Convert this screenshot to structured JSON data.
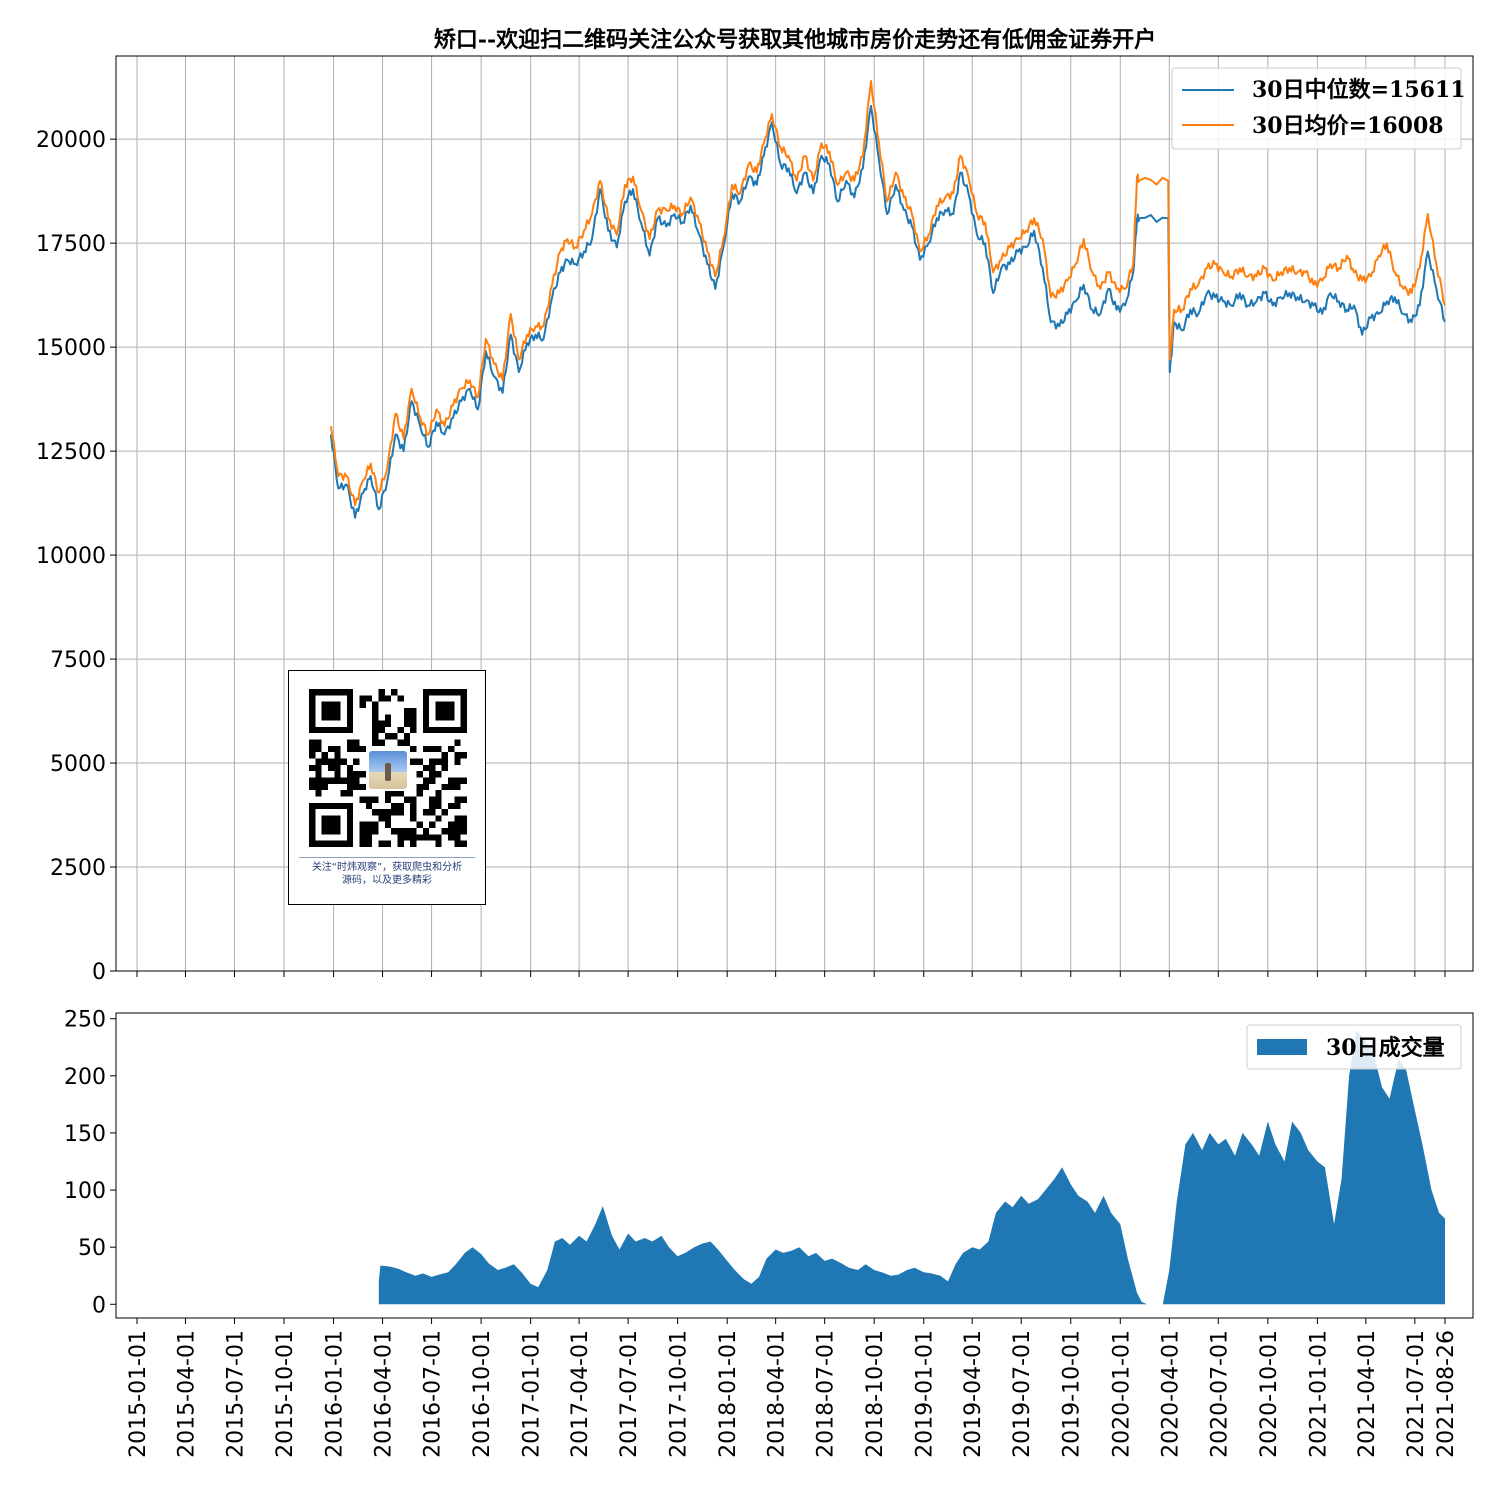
{
  "chart_data": [
    {
      "type": "line",
      "title": "矫口--欢迎扫二维码关注公众号获取其他城市房价走势还有低佣金证券开户",
      "xlabel": "",
      "ylabel": "",
      "xlim": [
        "2014-11-23",
        "2021-10-17"
      ],
      "ylim": [
        0,
        22000
      ],
      "yticks": [
        0,
        2500,
        5000,
        7500,
        10000,
        12500,
        15000,
        17500,
        20000
      ],
      "grid": true,
      "legend_position": "top-right",
      "series": [
        {
          "name": "30日中位数=15611",
          "color": "#1f77b4",
          "x": [
            "2015-12-27",
            "2016-01-10",
            "2016-01-25",
            "2016-02-10",
            "2016-02-25",
            "2016-03-10",
            "2016-03-25",
            "2016-04-10",
            "2016-04-25",
            "2016-05-10",
            "2016-05-25",
            "2016-06-10",
            "2016-06-25",
            "2016-07-10",
            "2016-07-25",
            "2016-08-10",
            "2016-08-25",
            "2016-09-10",
            "2016-09-25",
            "2016-10-10",
            "2016-10-25",
            "2016-11-10",
            "2016-11-25",
            "2016-12-10",
            "2016-12-25",
            "2017-01-10",
            "2017-01-25",
            "2017-02-10",
            "2017-02-25",
            "2017-03-10",
            "2017-03-25",
            "2017-04-10",
            "2017-04-25",
            "2017-05-10",
            "2017-05-25",
            "2017-06-10",
            "2017-06-25",
            "2017-07-10",
            "2017-07-25",
            "2017-08-10",
            "2017-08-25",
            "2017-09-10",
            "2017-09-25",
            "2017-10-10",
            "2017-10-25",
            "2017-11-10",
            "2017-11-25",
            "2017-12-10",
            "2017-12-25",
            "2018-01-10",
            "2018-01-25",
            "2018-02-10",
            "2018-02-25",
            "2018-03-10",
            "2018-03-25",
            "2018-04-10",
            "2018-04-25",
            "2018-05-10",
            "2018-05-25",
            "2018-06-10",
            "2018-06-25",
            "2018-07-10",
            "2018-07-25",
            "2018-08-10",
            "2018-08-25",
            "2018-09-10",
            "2018-09-25",
            "2018-10-10",
            "2018-10-25",
            "2018-11-10",
            "2018-11-25",
            "2018-12-10",
            "2018-12-25",
            "2019-01-10",
            "2019-01-25",
            "2019-02-10",
            "2019-02-25",
            "2019-03-10",
            "2019-03-25",
            "2019-04-10",
            "2019-04-25",
            "2019-05-10",
            "2019-05-25",
            "2019-06-10",
            "2019-06-25",
            "2019-07-10",
            "2019-07-25",
            "2019-08-10",
            "2019-08-25",
            "2019-09-10",
            "2019-09-25",
            "2019-10-10",
            "2019-10-25",
            "2019-11-10",
            "2019-11-25",
            "2019-12-10",
            "2019-12-25",
            "2020-01-10",
            "2020-01-25",
            "2020-02-01",
            "2020-02-05",
            "2020-03-30",
            "2020-04-02",
            "2020-04-10",
            "2020-04-25",
            "2020-05-10",
            "2020-05-25",
            "2020-06-10",
            "2020-06-25",
            "2020-07-10",
            "2020-07-25",
            "2020-08-10",
            "2020-08-25",
            "2020-09-10",
            "2020-09-25",
            "2020-10-10",
            "2020-10-25",
            "2020-11-10",
            "2020-11-25",
            "2020-12-10",
            "2020-12-25",
            "2021-01-10",
            "2021-01-25",
            "2021-02-10",
            "2021-02-25",
            "2021-03-10",
            "2021-03-25",
            "2021-04-10",
            "2021-04-25",
            "2021-05-10",
            "2021-05-25",
            "2021-06-10",
            "2021-06-25",
            "2021-07-10",
            "2021-07-25",
            "2021-08-10",
            "2021-08-26"
          ],
          "y": [
            12900,
            11600,
            11700,
            10900,
            11500,
            11900,
            11100,
            11800,
            12900,
            12500,
            13700,
            13100,
            12600,
            13200,
            12900,
            13300,
            13700,
            14000,
            13500,
            14900,
            14300,
            13900,
            15300,
            14400,
            15100,
            15300,
            15200,
            16200,
            16800,
            17100,
            17000,
            17300,
            17600,
            18800,
            17800,
            17400,
            18500,
            18800,
            18000,
            17200,
            18100,
            17900,
            18200,
            18000,
            18400,
            17700,
            17000,
            16400,
            17400,
            18700,
            18500,
            19100,
            18900,
            19600,
            20400,
            19400,
            19300,
            18700,
            19200,
            18700,
            19600,
            19400,
            18500,
            19000,
            18600,
            19300,
            20800,
            19500,
            18200,
            18900,
            18300,
            17900,
            17100,
            17500,
            18100,
            18300,
            18200,
            19200,
            18700,
            17700,
            17500,
            16300,
            16900,
            17000,
            17300,
            17400,
            17800,
            16900,
            15600,
            15500,
            15800,
            16100,
            16500,
            15900,
            15800,
            16400,
            15900,
            16000,
            16800,
            18100,
            18100,
            18100,
            14400,
            15600,
            15400,
            15900,
            15800,
            16300,
            16200,
            16100,
            16000,
            16300,
            16000,
            16100,
            16300,
            16000,
            16200,
            16300,
            16200,
            16100,
            16000,
            15800,
            16300,
            16100,
            15900,
            16000,
            15300,
            15700,
            15800,
            16100,
            16200,
            15800,
            15600,
            16000,
            17300,
            16400,
            15611
          ]
        },
        {
          "name": "30日均价=16008",
          "color": "#ff7f0e",
          "x": [
            "2015-12-27",
            "2016-01-10",
            "2016-01-25",
            "2016-02-10",
            "2016-02-25",
            "2016-03-10",
            "2016-03-25",
            "2016-04-10",
            "2016-04-25",
            "2016-05-10",
            "2016-05-25",
            "2016-06-10",
            "2016-06-25",
            "2016-07-10",
            "2016-07-25",
            "2016-08-10",
            "2016-08-25",
            "2016-09-10",
            "2016-09-25",
            "2016-10-10",
            "2016-10-25",
            "2016-11-10",
            "2016-11-25",
            "2016-12-10",
            "2016-12-25",
            "2017-01-10",
            "2017-01-25",
            "2017-02-10",
            "2017-02-25",
            "2017-03-10",
            "2017-03-25",
            "2017-04-10",
            "2017-04-25",
            "2017-05-10",
            "2017-05-25",
            "2017-06-10",
            "2017-06-25",
            "2017-07-10",
            "2017-07-25",
            "2017-08-10",
            "2017-08-25",
            "2017-09-10",
            "2017-09-25",
            "2017-10-10",
            "2017-10-25",
            "2017-11-10",
            "2017-11-25",
            "2017-12-10",
            "2017-12-25",
            "2018-01-10",
            "2018-01-25",
            "2018-02-10",
            "2018-02-25",
            "2018-03-10",
            "2018-03-25",
            "2018-04-10",
            "2018-04-25",
            "2018-05-10",
            "2018-05-25",
            "2018-06-10",
            "2018-06-25",
            "2018-07-10",
            "2018-07-25",
            "2018-08-10",
            "2018-08-25",
            "2018-09-10",
            "2018-09-25",
            "2018-10-10",
            "2018-10-25",
            "2018-11-10",
            "2018-11-25",
            "2018-12-10",
            "2018-12-25",
            "2019-01-10",
            "2019-01-25",
            "2019-02-10",
            "2019-02-25",
            "2019-03-10",
            "2019-03-25",
            "2019-04-10",
            "2019-04-25",
            "2019-05-10",
            "2019-05-25",
            "2019-06-10",
            "2019-06-25",
            "2019-07-10",
            "2019-07-25",
            "2019-08-10",
            "2019-08-25",
            "2019-09-10",
            "2019-09-25",
            "2019-10-10",
            "2019-10-25",
            "2019-11-10",
            "2019-11-25",
            "2019-12-10",
            "2019-12-25",
            "2020-01-10",
            "2020-01-25",
            "2020-02-01",
            "2020-02-05",
            "2020-03-30",
            "2020-04-02",
            "2020-04-10",
            "2020-04-25",
            "2020-05-10",
            "2020-05-25",
            "2020-06-10",
            "2020-06-25",
            "2020-07-10",
            "2020-07-25",
            "2020-08-10",
            "2020-08-25",
            "2020-09-10",
            "2020-09-25",
            "2020-10-10",
            "2020-10-25",
            "2020-11-10",
            "2020-11-25",
            "2020-12-10",
            "2020-12-25",
            "2021-01-10",
            "2021-01-25",
            "2021-02-10",
            "2021-02-25",
            "2021-03-10",
            "2021-03-25",
            "2021-04-10",
            "2021-04-25",
            "2021-05-10",
            "2021-05-25",
            "2021-06-10",
            "2021-06-25",
            "2021-07-10",
            "2021-07-25",
            "2021-08-10",
            "2021-08-26"
          ],
          "y": [
            13100,
            11900,
            11900,
            11200,
            11800,
            12200,
            11500,
            12100,
            13400,
            12800,
            14000,
            13300,
            12900,
            13500,
            13100,
            13600,
            14000,
            14200,
            13800,
            15200,
            14600,
            14200,
            15800,
            14700,
            15300,
            15500,
            15500,
            16500,
            17300,
            17600,
            17400,
            17800,
            18200,
            19000,
            18100,
            17700,
            18900,
            19100,
            18300,
            17600,
            18300,
            18300,
            18400,
            18200,
            18600,
            18000,
            17300,
            16700,
            17600,
            18900,
            18700,
            19400,
            19200,
            19900,
            20600,
            19800,
            19600,
            19000,
            19600,
            19000,
            19900,
            19700,
            18900,
            19200,
            19000,
            19600,
            21400,
            19900,
            18500,
            19200,
            18600,
            18200,
            17300,
            17700,
            18400,
            18600,
            18700,
            19600,
            19100,
            18200,
            18000,
            16800,
            17100,
            17400,
            17600,
            17800,
            18100,
            17600,
            16200,
            16300,
            16600,
            17000,
            17600,
            16800,
            16400,
            16800,
            16400,
            16400,
            17000,
            19100,
            19000,
            19000,
            14700,
            15900,
            15900,
            16400,
            16500,
            16900,
            17000,
            16800,
            16700,
            16900,
            16700,
            16700,
            16900,
            16600,
            16800,
            16900,
            16800,
            16800,
            16500,
            16600,
            17000,
            16900,
            17200,
            16800,
            16600,
            16700,
            17200,
            17500,
            16800,
            16400,
            16300,
            16900,
            18200,
            17000,
            16008
          ]
        }
      ]
    },
    {
      "type": "area",
      "xlabel": "",
      "ylabel": "",
      "ylim": [
        -12,
        255
      ],
      "yticks": [
        0,
        50,
        100,
        150,
        200,
        250
      ],
      "grid": false,
      "legend_position": "top-right",
      "x_tick_labels": [
        "2015-01-01",
        "2015-04-01",
        "2015-07-01",
        "2015-10-01",
        "2016-01-01",
        "2016-04-01",
        "2016-07-01",
        "2016-10-01",
        "2017-01-01",
        "2017-04-01",
        "2017-07-01",
        "2017-10-01",
        "2018-01-01",
        "2018-04-01",
        "2018-07-01",
        "2018-10-01",
        "2019-01-01",
        "2019-04-01",
        "2019-07-01",
        "2019-10-01",
        "2020-01-01",
        "2020-04-01",
        "2020-07-01",
        "2020-10-01",
        "2021-01-01",
        "2021-04-01",
        "2021-07-01",
        "2021-08-26"
      ],
      "series": [
        {
          "name": "30日成交量",
          "color": "#1f77b4",
          "x": [
            "2016-03-25",
            "2016-03-28",
            "2016-04-15",
            "2016-05-01",
            "2016-05-15",
            "2016-06-01",
            "2016-06-15",
            "2016-07-01",
            "2016-07-15",
            "2016-08-01",
            "2016-08-15",
            "2016-09-01",
            "2016-09-15",
            "2016-10-01",
            "2016-10-15",
            "2016-11-01",
            "2016-11-15",
            "2016-12-01",
            "2016-12-15",
            "2017-01-01",
            "2017-01-15",
            "2017-02-01",
            "2017-02-15",
            "2017-03-01",
            "2017-03-15",
            "2017-04-01",
            "2017-04-15",
            "2017-05-01",
            "2017-05-15",
            "2017-06-01",
            "2017-06-15",
            "2017-07-01",
            "2017-07-15",
            "2017-08-01",
            "2017-08-15",
            "2017-09-01",
            "2017-09-15",
            "2017-10-01",
            "2017-10-15",
            "2017-11-01",
            "2017-11-15",
            "2017-12-01",
            "2017-12-15",
            "2018-01-01",
            "2018-01-15",
            "2018-02-01",
            "2018-02-15",
            "2018-03-01",
            "2018-03-15",
            "2018-04-01",
            "2018-04-15",
            "2018-05-01",
            "2018-05-15",
            "2018-06-01",
            "2018-06-15",
            "2018-07-01",
            "2018-07-15",
            "2018-08-01",
            "2018-08-15",
            "2018-09-01",
            "2018-09-15",
            "2018-10-01",
            "2018-10-15",
            "2018-11-01",
            "2018-11-15",
            "2018-12-01",
            "2018-12-15",
            "2019-01-01",
            "2019-01-15",
            "2019-02-01",
            "2019-02-15",
            "2019-03-01",
            "2019-03-15",
            "2019-04-01",
            "2019-04-15",
            "2019-05-01",
            "2019-05-15",
            "2019-06-01",
            "2019-06-15",
            "2019-07-01",
            "2019-07-15",
            "2019-08-01",
            "2019-08-15",
            "2019-09-01",
            "2019-09-15",
            "2019-10-01",
            "2019-10-15",
            "2019-11-01",
            "2019-11-15",
            "2019-12-01",
            "2019-12-15",
            "2020-01-01",
            "2020-01-15",
            "2020-02-01",
            "2020-02-10",
            "2020-02-20",
            "2020-03-10",
            "2020-03-20",
            "2020-04-01",
            "2020-04-15",
            "2020-05-01",
            "2020-05-15",
            "2020-06-01",
            "2020-06-15",
            "2020-07-01",
            "2020-07-15",
            "2020-08-01",
            "2020-08-15",
            "2020-09-01",
            "2020-09-15",
            "2020-10-01",
            "2020-10-15",
            "2020-11-01",
            "2020-11-15",
            "2020-12-01",
            "2020-12-15",
            "2021-01-01",
            "2021-01-15",
            "2021-02-01",
            "2021-02-15",
            "2021-03-01",
            "2021-03-15",
            "2021-04-01",
            "2021-04-15",
            "2021-05-01",
            "2021-05-15",
            "2021-06-01",
            "2021-06-15",
            "2021-07-01",
            "2021-07-15",
            "2021-08-01",
            "2021-08-15",
            "2021-08-26"
          ],
          "values": [
            20,
            34,
            33,
            31,
            28,
            25,
            27,
            24,
            26,
            28,
            35,
            45,
            50,
            44,
            36,
            30,
            32,
            35,
            28,
            18,
            15,
            30,
            55,
            58,
            52,
            60,
            55,
            70,
            86,
            60,
            48,
            62,
            55,
            58,
            55,
            60,
            50,
            42,
            45,
            50,
            53,
            55,
            48,
            38,
            30,
            22,
            18,
            24,
            40,
            48,
            45,
            47,
            50,
            42,
            45,
            38,
            40,
            36,
            32,
            30,
            35,
            30,
            28,
            25,
            26,
            30,
            32,
            28,
            27,
            25,
            20,
            35,
            45,
            50,
            48,
            55,
            80,
            90,
            85,
            95,
            88,
            92,
            100,
            110,
            120,
            105,
            95,
            90,
            80,
            95,
            80,
            70,
            40,
            10,
            2,
            0,
            0,
            0,
            30,
            90,
            140,
            150,
            135,
            150,
            140,
            145,
            130,
            150,
            140,
            130,
            160,
            140,
            125,
            160,
            150,
            135,
            125,
            120,
            70,
            110,
            200,
            240,
            230,
            220,
            190,
            180,
            215,
            205,
            170,
            140,
            100,
            80,
            75
          ]
        }
      ]
    }
  ],
  "qr_card": {
    "caption_line1": "关注“时炜观察”，获取爬虫和分析",
    "caption_line2": "源码，以及更多精彩"
  }
}
